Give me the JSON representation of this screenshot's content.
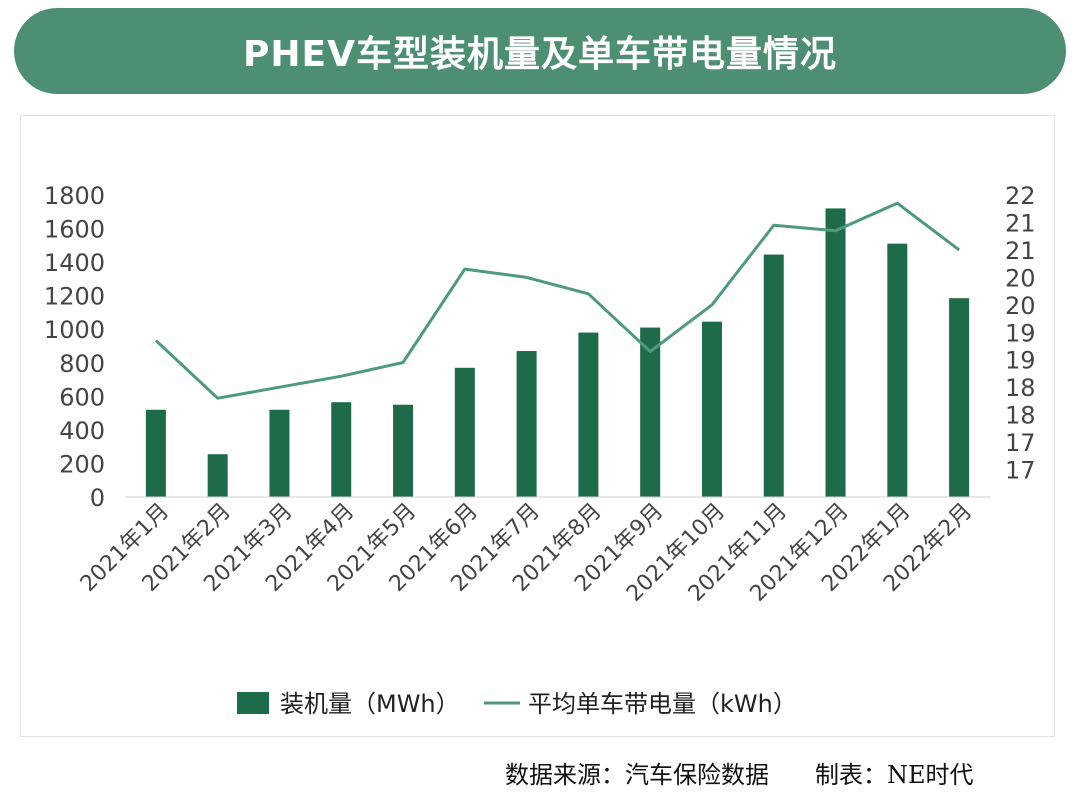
{
  "title": "PHEV车型装机量及单车带电量情况",
  "footer": {
    "source": "数据来源：汽车保险数据",
    "maker": "制表：NE时代"
  },
  "colors": {
    "banner": "#4d8f73",
    "bar": "#1d6b48",
    "line": "#4f9a7c"
  },
  "chart_data": {
    "type": "bar",
    "categories": [
      "2021年1月",
      "2021年2月",
      "2021年3月",
      "2021年4月",
      "2021年5月",
      "2021年6月",
      "2021年7月",
      "2021年8月",
      "2021年9月",
      "2021年10月",
      "2021年11月",
      "2021年12月",
      "2022年1月",
      "2022年2月"
    ],
    "series": [
      {
        "name": "装机量（MWh）",
        "type": "bar",
        "axis": "left",
        "values": [
          520,
          255,
          520,
          565,
          550,
          770,
          870,
          980,
          1010,
          1045,
          1445,
          1720,
          1510,
          1185
        ]
      },
      {
        "name": "平均单车带电量（kWh）",
        "type": "line",
        "axis": "right",
        "values": [
          19.35,
          18.3,
          18.5,
          18.7,
          18.95,
          20.65,
          20.5,
          20.2,
          19.15,
          20.0,
          21.45,
          21.35,
          21.85,
          21.0
        ]
      }
    ],
    "y_left": {
      "min": 0,
      "max": 1800,
      "step": 200,
      "tick_labels": [
        "0",
        "200",
        "400",
        "600",
        "800",
        "1000",
        "1200",
        "1400",
        "1600",
        "1800"
      ]
    },
    "y_right": {
      "min": 16.5,
      "max": 22.0,
      "tick_labels": [
        "17",
        "17",
        "18",
        "18",
        "19",
        "19",
        "20",
        "20",
        "21",
        "21",
        "22"
      ]
    },
    "legend_position": "bottom",
    "grid": false
  }
}
